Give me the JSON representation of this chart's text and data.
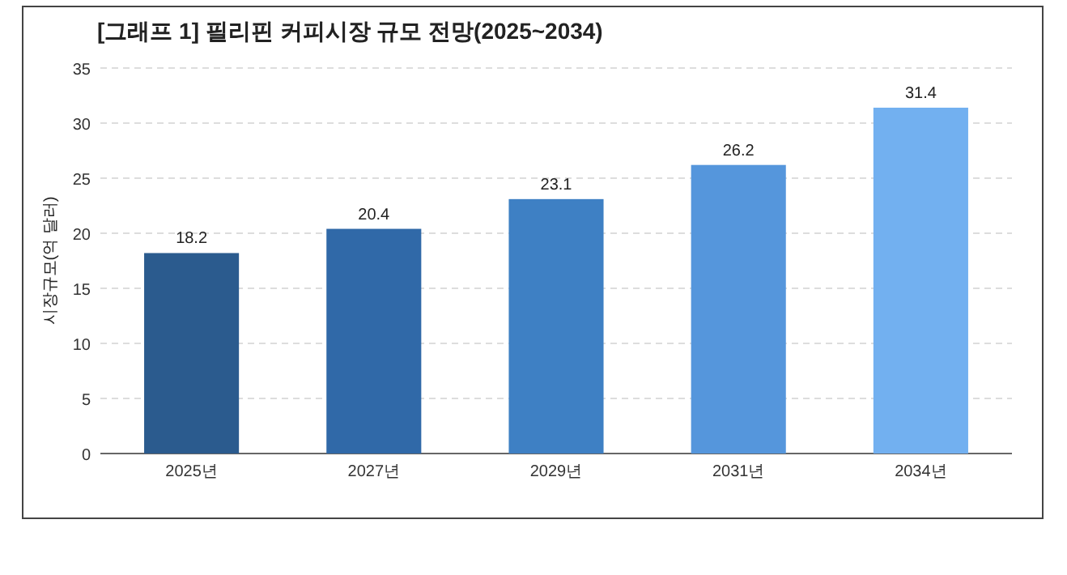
{
  "chart_data": {
    "type": "bar",
    "title": "[그래프 1] 필리핀 커피시장 규모 전망(2025~2034)",
    "ylabel": "시장규모(억 달러)",
    "categories": [
      "2025년",
      "2027년",
      "2029년",
      "2031년",
      "2034년"
    ],
    "values": [
      18.2,
      20.4,
      23.1,
      26.2,
      31.4
    ],
    "colors": [
      "#2b5b8e",
      "#3069a8",
      "#3e80c4",
      "#5596dc",
      "#72b0f0"
    ],
    "ylim": [
      0,
      35
    ],
    "yticks": [
      0,
      5,
      10,
      15,
      20,
      25,
      30,
      35
    ],
    "grid": "y",
    "data_labels": true
  }
}
